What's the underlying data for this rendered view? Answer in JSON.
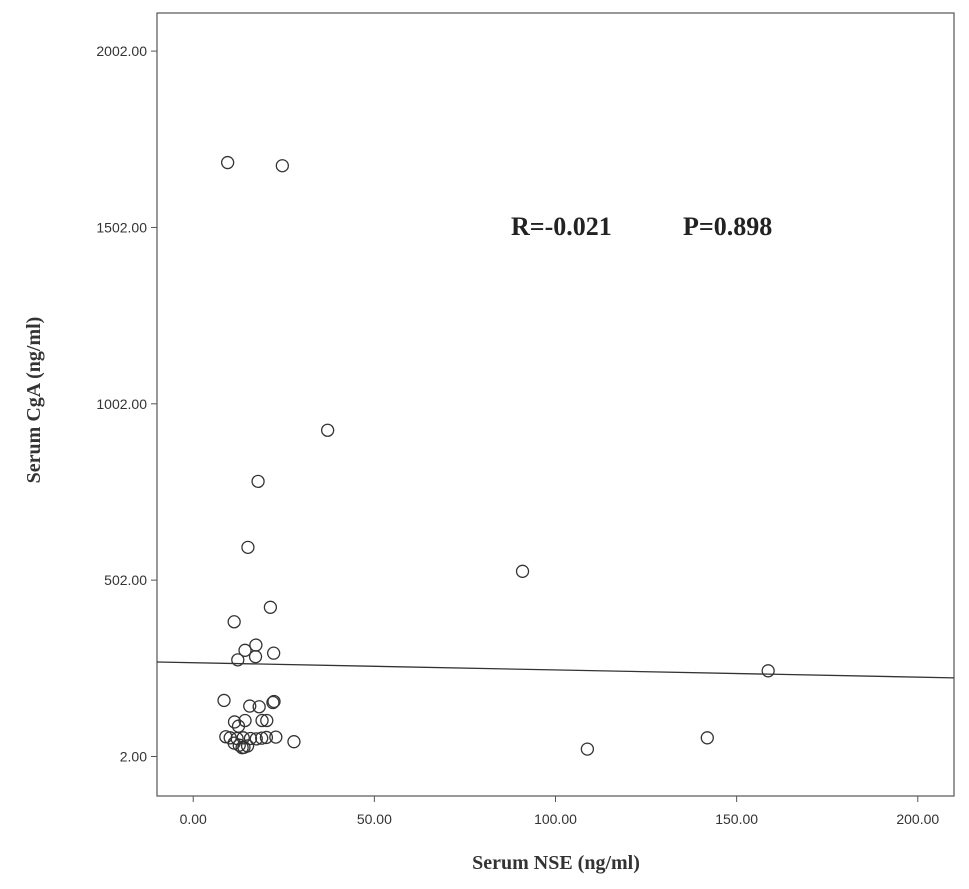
{
  "chart_data": {
    "type": "scatter",
    "title": "",
    "xlabel": "Serum NSE (ng/ml)",
    "ylabel": "Serum CgA (ng/ml)",
    "xlim": [
      -10,
      210
    ],
    "ylim": [
      -110,
      2110
    ],
    "x_ticks": [
      0,
      50,
      100,
      150,
      200
    ],
    "x_tick_labels": [
      "0.00",
      "50.00",
      "100.00",
      "150.00",
      "200.00"
    ],
    "y_ticks": [
      2,
      502,
      1002,
      1502,
      2002
    ],
    "y_tick_labels": [
      "2.00",
      "502.00",
      "1002.00",
      "1502.00",
      "2002.00"
    ],
    "grid": false,
    "annotations": [
      "R=-0.021",
      "P=0.898"
    ],
    "fit_line": {
      "x": [
        -10,
        210
      ],
      "y": [
        270,
        225
      ]
    },
    "colors": {
      "marker_stroke": "#333333",
      "line": "#333333",
      "frame": "#555555"
    },
    "points": [
      [
        9.5,
        1686
      ],
      [
        24.6,
        1677
      ],
      [
        37.1,
        927
      ],
      [
        17.9,
        782
      ],
      [
        15.1,
        595
      ],
      [
        90.9,
        527
      ],
      [
        21.3,
        425
      ],
      [
        11.3,
        384
      ],
      [
        17.3,
        318
      ],
      [
        14.3,
        303
      ],
      [
        22.2,
        295
      ],
      [
        17.2,
        285
      ],
      [
        12.3,
        276
      ],
      [
        158.7,
        245
      ],
      [
        8.5,
        161
      ],
      [
        22.3,
        158
      ],
      [
        22.0,
        155
      ],
      [
        15.6,
        145
      ],
      [
        18.2,
        143
      ],
      [
        11.4,
        100
      ],
      [
        19.0,
        104
      ],
      [
        20.3,
        104
      ],
      [
        14.3,
        104
      ],
      [
        12.5,
        88
      ],
      [
        9.0,
        58
      ],
      [
        10.2,
        55
      ],
      [
        12.1,
        53
      ],
      [
        13.8,
        55
      ],
      [
        15.8,
        53
      ],
      [
        17.4,
        52
      ],
      [
        18.9,
        54
      ],
      [
        20.2,
        56
      ],
      [
        22.8,
        57
      ],
      [
        27.8,
        44
      ],
      [
        11.3,
        40
      ],
      [
        12.7,
        34
      ],
      [
        14.0,
        28
      ],
      [
        15.0,
        32
      ],
      [
        13.5,
        27
      ],
      [
        141.9,
        55
      ],
      [
        108.8,
        23
      ]
    ]
  }
}
